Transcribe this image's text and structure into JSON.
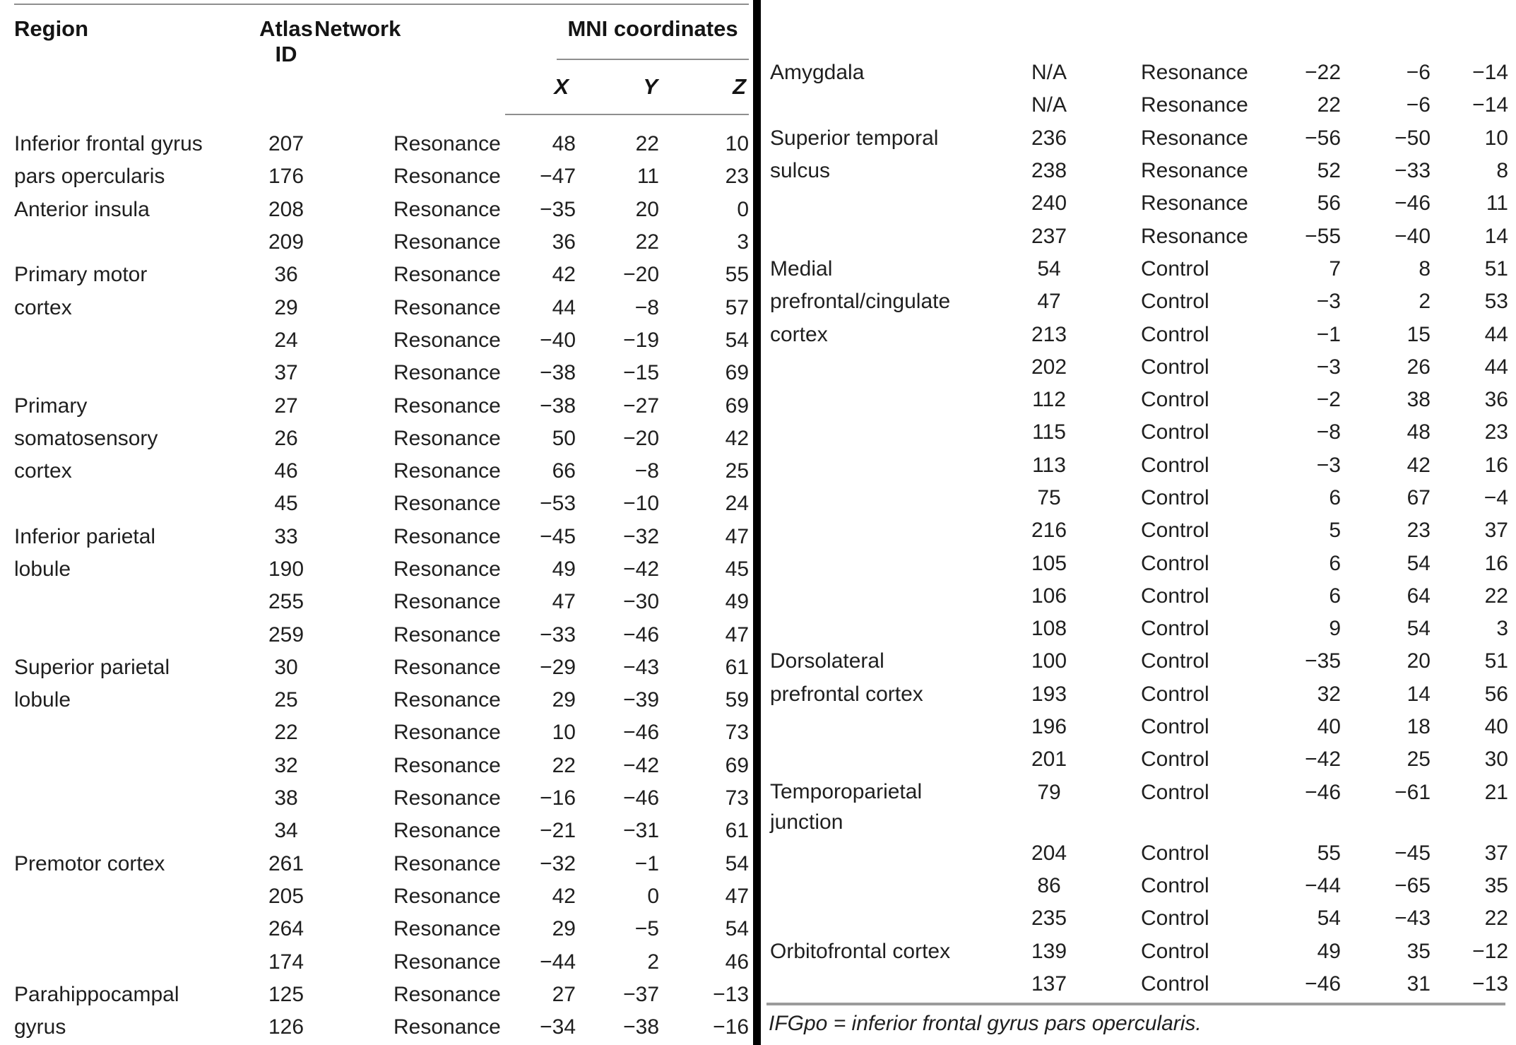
{
  "header": {
    "region": "Region",
    "atlas_id": "Atlas ID",
    "network": "Network",
    "mni": "MNI coordinates",
    "x": "X",
    "y": "Y",
    "z": "Z"
  },
  "left_table": {
    "rows": [
      {
        "region": "Inferior frontal gyrus",
        "id": "207",
        "network": "Resonance",
        "x": "48",
        "y": "22",
        "z": "10"
      },
      {
        "region": "pars opercularis",
        "id": "176",
        "network": "Resonance",
        "x": "−47",
        "y": "11",
        "z": "23"
      },
      {
        "region": "Anterior insula",
        "id": "208",
        "network": "Resonance",
        "x": "−35",
        "y": "20",
        "z": "0"
      },
      {
        "region": "",
        "id": "209",
        "network": "Resonance",
        "x": "36",
        "y": "22",
        "z": "3"
      },
      {
        "region": "Primary motor",
        "id": "36",
        "network": "Resonance",
        "x": "42",
        "y": "−20",
        "z": "55"
      },
      {
        "region": "cortex",
        "id": "29",
        "network": "Resonance",
        "x": "44",
        "y": "−8",
        "z": "57"
      },
      {
        "region": "",
        "id": "24",
        "network": "Resonance",
        "x": "−40",
        "y": "−19",
        "z": "54"
      },
      {
        "region": "",
        "id": "37",
        "network": "Resonance",
        "x": "−38",
        "y": "−15",
        "z": "69"
      },
      {
        "region": "Primary",
        "id": "27",
        "network": "Resonance",
        "x": "−38",
        "y": "−27",
        "z": "69"
      },
      {
        "region": "somatosensory",
        "id": "26",
        "network": "Resonance",
        "x": "50",
        "y": "−20",
        "z": "42"
      },
      {
        "region": "cortex",
        "id": "46",
        "network": "Resonance",
        "x": "66",
        "y": "−8",
        "z": "25"
      },
      {
        "region": "",
        "id": "45",
        "network": "Resonance",
        "x": "−53",
        "y": "−10",
        "z": "24"
      },
      {
        "region": "Inferior parietal",
        "id": "33",
        "network": "Resonance",
        "x": "−45",
        "y": "−32",
        "z": "47"
      },
      {
        "region": "lobule",
        "id": "190",
        "network": "Resonance",
        "x": "49",
        "y": "−42",
        "z": "45"
      },
      {
        "region": "",
        "id": "255",
        "network": "Resonance",
        "x": "47",
        "y": "−30",
        "z": "49"
      },
      {
        "region": "",
        "id": "259",
        "network": "Resonance",
        "x": "−33",
        "y": "−46",
        "z": "47"
      },
      {
        "region": "Superior parietal",
        "id": "30",
        "network": "Resonance",
        "x": "−29",
        "y": "−43",
        "z": "61"
      },
      {
        "region": "lobule",
        "id": "25",
        "network": "Resonance",
        "x": "29",
        "y": "−39",
        "z": "59"
      },
      {
        "region": "",
        "id": "22",
        "network": "Resonance",
        "x": "10",
        "y": "−46",
        "z": "73"
      },
      {
        "region": "",
        "id": "32",
        "network": "Resonance",
        "x": "22",
        "y": "−42",
        "z": "69"
      },
      {
        "region": "",
        "id": "38",
        "network": "Resonance",
        "x": "−16",
        "y": "−46",
        "z": "73"
      },
      {
        "region": "",
        "id": "34",
        "network": "Resonance",
        "x": "−21",
        "y": "−31",
        "z": "61"
      },
      {
        "region": "Premotor cortex",
        "id": "261",
        "network": "Resonance",
        "x": "−32",
        "y": "−1",
        "z": "54"
      },
      {
        "region": "",
        "id": "205",
        "network": "Resonance",
        "x": "42",
        "y": "0",
        "z": "47"
      },
      {
        "region": "",
        "id": "264",
        "network": "Resonance",
        "x": "29",
        "y": "−5",
        "z": "54"
      },
      {
        "region": "",
        "id": "174",
        "network": "Resonance",
        "x": "−44",
        "y": "2",
        "z": "46"
      },
      {
        "region": "Parahippocampal",
        "id": "125",
        "network": "Resonance",
        "x": "27",
        "y": "−37",
        "z": "−13"
      },
      {
        "region": "gyrus",
        "id": "126",
        "network": "Resonance",
        "x": "−34",
        "y": "−38",
        "z": "−16"
      }
    ]
  },
  "right_table": {
    "rows": [
      {
        "region": "Amygdala",
        "id": "N/A",
        "network": "Resonance",
        "x": "−22",
        "y": "−6",
        "z": "−14"
      },
      {
        "region": "",
        "id": "N/A",
        "network": "Resonance",
        "x": "22",
        "y": "−6",
        "z": "−14"
      },
      {
        "region": "Superior temporal",
        "id": "236",
        "network": "Resonance",
        "x": "−56",
        "y": "−50",
        "z": "10"
      },
      {
        "region": "sulcus",
        "id": "238",
        "network": "Resonance",
        "x": "52",
        "y": "−33",
        "z": "8"
      },
      {
        "region": "",
        "id": "240",
        "network": "Resonance",
        "x": "56",
        "y": "−46",
        "z": "11"
      },
      {
        "region": "",
        "id": "237",
        "network": "Resonance",
        "x": "−55",
        "y": "−40",
        "z": "14"
      },
      {
        "region": "Medial",
        "id": "54",
        "network": "Control",
        "x": "7",
        "y": "8",
        "z": "51"
      },
      {
        "region": "prefrontal/cingulate",
        "id": "47",
        "network": "Control",
        "x": "−3",
        "y": "2",
        "z": "53"
      },
      {
        "region": "cortex",
        "id": "213",
        "network": "Control",
        "x": "−1",
        "y": "15",
        "z": "44"
      },
      {
        "region": "",
        "id": "202",
        "network": "Control",
        "x": "−3",
        "y": "26",
        "z": "44"
      },
      {
        "region": "",
        "id": "112",
        "network": "Control",
        "x": "−2",
        "y": "38",
        "z": "36"
      },
      {
        "region": "",
        "id": "115",
        "network": "Control",
        "x": "−8",
        "y": "48",
        "z": "23"
      },
      {
        "region": "",
        "id": "113",
        "network": "Control",
        "x": "−3",
        "y": "42",
        "z": "16"
      },
      {
        "region": "",
        "id": "75",
        "network": "Control",
        "x": "6",
        "y": "67",
        "z": "−4"
      },
      {
        "region": "",
        "id": "216",
        "network": "Control",
        "x": "5",
        "y": "23",
        "z": "37"
      },
      {
        "region": "",
        "id": "105",
        "network": "Control",
        "x": "6",
        "y": "54",
        "z": "16"
      },
      {
        "region": "",
        "id": "106",
        "network": "Control",
        "x": "6",
        "y": "64",
        "z": "22"
      },
      {
        "region": "",
        "id": "108",
        "network": "Control",
        "x": "9",
        "y": "54",
        "z": "3"
      },
      {
        "region": "Dorsolateral",
        "id": "100",
        "network": "Control",
        "x": "−35",
        "y": "20",
        "z": "51"
      },
      {
        "region": "prefrontal cortex",
        "id": "193",
        "network": "Control",
        "x": "32",
        "y": "14",
        "z": "56"
      },
      {
        "region": "",
        "id": "196",
        "network": "Control",
        "x": "40",
        "y": "18",
        "z": "40"
      },
      {
        "region": "",
        "id": "201",
        "network": "Control",
        "x": "−42",
        "y": "25",
        "z": "30"
      },
      {
        "region": "Temporoparietal\njunction",
        "id": "79",
        "network": "Control",
        "x": "−46",
        "y": "−61",
        "z": "21",
        "tall": true
      },
      {
        "region": "",
        "id": "204",
        "network": "Control",
        "x": "55",
        "y": "−45",
        "z": "37"
      },
      {
        "region": "",
        "id": "86",
        "network": "Control",
        "x": "−44",
        "y": "−65",
        "z": "35"
      },
      {
        "region": "",
        "id": "235",
        "network": "Control",
        "x": "54",
        "y": "−43",
        "z": "22"
      },
      {
        "region": "Orbitofrontal cortex",
        "id": "139",
        "network": "Control",
        "x": "49",
        "y": "35",
        "z": "−12"
      },
      {
        "region": "",
        "id": "137",
        "network": "Control",
        "x": "−46",
        "y": "31",
        "z": "−13"
      }
    ]
  },
  "footnote": "IFGpo = inferior frontal gyrus pars opercularis."
}
